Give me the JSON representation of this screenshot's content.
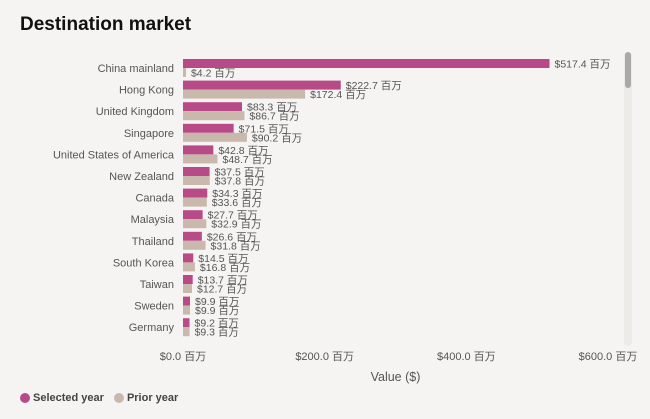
{
  "title": "Destination market",
  "colors": {
    "selected": "#b84a88",
    "prior": "#c9b9ad",
    "background": "#f5f4f2"
  },
  "legend": {
    "selected_label": "Selected year",
    "prior_label": "Prior year"
  },
  "chart_data": {
    "type": "bar",
    "orientation": "horizontal",
    "title": "Destination market",
    "xlabel": "Value ($)",
    "ylabel": "",
    "xlim": [
      0,
      600
    ],
    "x_ticks": [
      {
        "value": 0,
        "label": "$0.0 百万"
      },
      {
        "value": 200,
        "label": "$200.0 百万"
      },
      {
        "value": 400,
        "label": "$400.0 百万"
      },
      {
        "value": 600,
        "label": "$600.0 百万"
      }
    ],
    "categories": [
      "China mainland",
      "Hong Kong",
      "United Kingdom",
      "Singapore",
      "United States of America",
      "New Zealand",
      "Canada",
      "Malaysia",
      "Thailand",
      "South Korea",
      "Taiwan",
      "Sweden",
      "Germany"
    ],
    "series": [
      {
        "name": "Selected year",
        "values": [
          517.4,
          222.7,
          83.3,
          71.5,
          42.8,
          37.5,
          34.3,
          27.7,
          26.6,
          14.5,
          13.7,
          9.9,
          9.2
        ],
        "labels": [
          "$517.4 百万",
          "$222.7 百万",
          "$83.3 百万",
          "$71.5 百万",
          "$42.8 百万",
          "$37.5 百万",
          "$34.3 百万",
          "$27.7 百万",
          "$26.6 百万",
          "$14.5 百万",
          "$13.7 百万",
          "$9.9 百万",
          "$9.2 百万"
        ]
      },
      {
        "name": "Prior year",
        "values": [
          4.2,
          172.4,
          86.7,
          90.2,
          48.7,
          37.8,
          33.6,
          32.9,
          31.8,
          16.8,
          12.7,
          9.9,
          9.3
        ],
        "labels": [
          "$4.2 百万",
          "$172.4 百万",
          "$86.7 百万",
          "$90.2 百万",
          "$48.7 百万",
          "$37.8 百万",
          "$33.6 百万",
          "$32.9 百万",
          "$31.8 百万",
          "$16.8 百万",
          "$12.7 百万",
          "$9.9 百万",
          "$9.3 百万"
        ]
      }
    ]
  }
}
